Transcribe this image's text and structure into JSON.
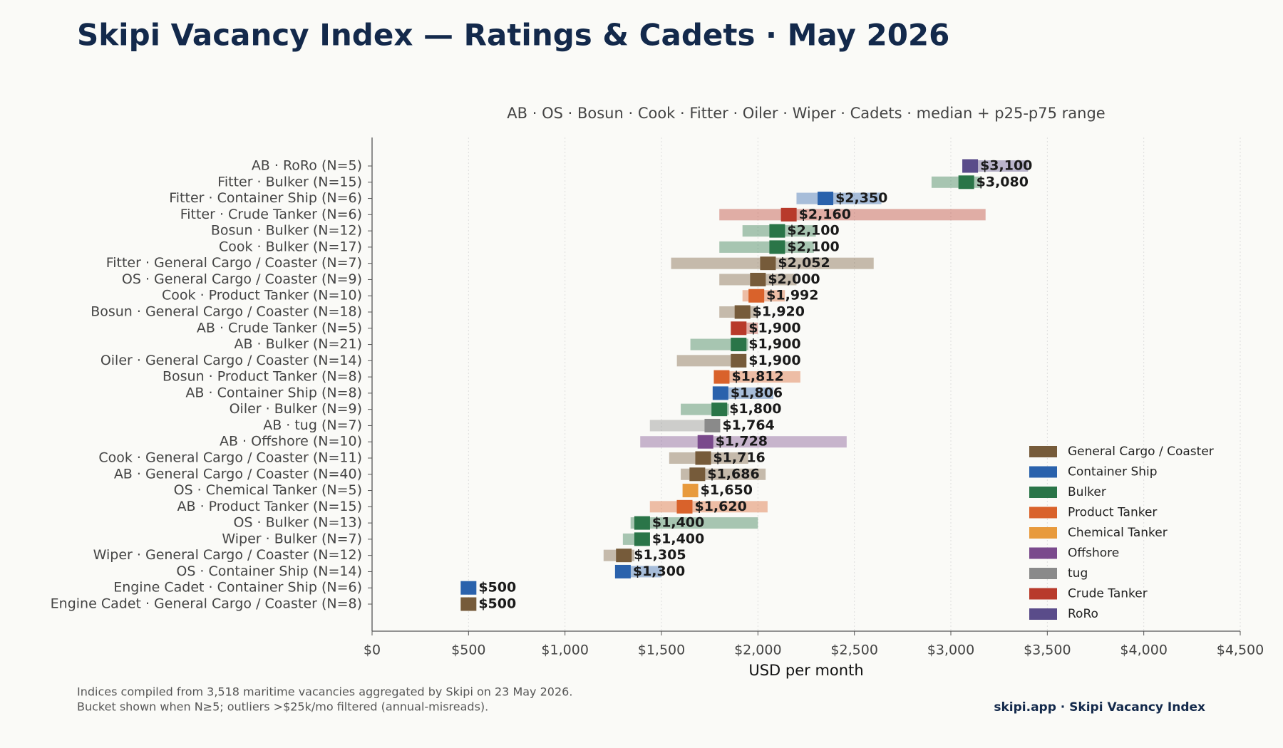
{
  "chart_data": {
    "type": "range",
    "title": "Skipi Vacancy Index — Ratings & Cadets · May 2026",
    "subtitle": "AB · OS · Bosun · Cook · Fitter · Oiler · Wiper · Cadets  ·  median + p25-p75 range",
    "x_label": "USD per month",
    "categories": [
      "AB · RoRo  (N=5)",
      "Fitter · Bulker  (N=15)",
      "Fitter · Container Ship  (N=6)",
      "Fitter · Crude Tanker  (N=6)",
      "Bosun · Bulker  (N=12)",
      "Cook · Bulker  (N=17)",
      "Fitter · General Cargo / Coaster  (N=7)",
      "OS · General Cargo / Coaster  (N=9)",
      "Cook · Product Tanker  (N=10)",
      "Bosun · General Cargo / Coaster  (N=18)",
      "AB · Crude Tanker  (N=5)",
      "AB · Bulker  (N=21)",
      "Oiler · General Cargo / Coaster  (N=14)",
      "Bosun · Product Tanker  (N=8)",
      "AB · Container Ship  (N=8)",
      "Oiler · Bulker  (N=9)",
      "AB · tug  (N=7)",
      "AB · Offshore  (N=10)",
      "Cook · General Cargo / Coaster  (N=11)",
      "AB · General Cargo / Coaster  (N=40)",
      "OS · Chemical Tanker  (N=5)",
      "AB · Product Tanker  (N=15)",
      "OS · Bulker  (N=13)",
      "Wiper · Bulker  (N=7)",
      "Wiper · General Cargo / Coaster  (N=12)",
      "OS · Container Ship  (N=14)",
      "Engine Cadet · Container Ship  (N=6)",
      "Engine Cadet · General Cargo / Coaster  (N=8)"
    ],
    "group": [
      "RoRo",
      "Bulker",
      "Container Ship",
      "Crude Tanker",
      "Bulker",
      "Bulker",
      "General Cargo / Coaster",
      "General Cargo / Coaster",
      "Product Tanker",
      "General Cargo / Coaster",
      "Crude Tanker",
      "Bulker",
      "General Cargo / Coaster",
      "Product Tanker",
      "Container Ship",
      "Bulker",
      "tug",
      "Offshore",
      "General Cargo / Coaster",
      "General Cargo / Coaster",
      "Chemical Tanker",
      "Product Tanker",
      "Bulker",
      "Bulker",
      "General Cargo / Coaster",
      "Container Ship",
      "Container Ship",
      "General Cargo / Coaster"
    ],
    "median": [
      3100,
      3080,
      2350,
      2160,
      2100,
      2100,
      2052,
      2000,
      1992,
      1920,
      1900,
      1900,
      1900,
      1812,
      1806,
      1800,
      1764,
      1728,
      1716,
      1686,
      1650,
      1620,
      1400,
      1400,
      1305,
      1300,
      500,
      500
    ],
    "value_labels": [
      "$3,100",
      "$3,080",
      "$2,350",
      "$2,160",
      "$2,100",
      "$2,100",
      "$2,052",
      "$2,000",
      "$1,992",
      "$1,920",
      "$1,900",
      "$1,900",
      "$1,900",
      "$1,812",
      "$1,806",
      "$1,800",
      "$1,764",
      "$1,728",
      "$1,716",
      "$1,686",
      "$1,650",
      "$1,620",
      "$1,400",
      "$1,400",
      "$1,305",
      "$1,300",
      "$500",
      "$500"
    ],
    "p25": [
      3100,
      2900,
      2200,
      1800,
      1920,
      1800,
      1550,
      1800,
      1920,
      1800,
      1860,
      1650,
      1580,
      1800,
      1800,
      1600,
      1440,
      1390,
      1540,
      1600,
      1620,
      1440,
      1340,
      1300,
      1200,
      1300,
      500,
      500
    ],
    "p75": [
      3400,
      3160,
      2640,
      3180,
      2300,
      2290,
      2600,
      2200,
      2140,
      2000,
      2000,
      1950,
      1930,
      2220,
      2080,
      1850,
      1764,
      2460,
      1950,
      2040,
      1680,
      2050,
      2000,
      1420,
      1360,
      1500,
      500,
      500
    ],
    "legend": [
      {
        "name": "General Cargo / Coaster",
        "color": "#765b3a"
      },
      {
        "name": "Container Ship",
        "color": "#2a62ac"
      },
      {
        "name": "Bulker",
        "color": "#2a7548"
      },
      {
        "name": "Product Tanker",
        "color": "#d9622b"
      },
      {
        "name": "Chemical Tanker",
        "color": "#e89a3c"
      },
      {
        "name": "Offshore",
        "color": "#7a4a8c"
      },
      {
        "name": "tug",
        "color": "#8a8a8a"
      },
      {
        "name": "Crude Tanker",
        "color": "#b83a2b"
      },
      {
        "name": "RoRo",
        "color": "#5a4c8a"
      }
    ],
    "xlim": [
      0,
      4500
    ],
    "xticks": [
      {
        "value": 0,
        "label": "$0"
      },
      {
        "value": 500,
        "label": "$500"
      },
      {
        "value": 1000,
        "label": "$1,000"
      },
      {
        "value": 1500,
        "label": "$1,500"
      },
      {
        "value": 2000,
        "label": "$2,000"
      },
      {
        "value": 2500,
        "label": "$2,500"
      },
      {
        "value": 3000,
        "label": "$3,000"
      },
      {
        "value": 3500,
        "label": "$3,500"
      },
      {
        "value": 4000,
        "label": "$4,000"
      },
      {
        "value": 4500,
        "label": "$4,500"
      }
    ],
    "grid": true,
    "notes": [
      "Indices compiled from 3,518 maritime vacancies aggregated by Skipi on 23 May 2026.",
      "Bucket shown when N≥5; outliers >$25k/mo filtered (annual-misreads)."
    ],
    "source": "skipi.app · Skipi Vacancy Index"
  }
}
